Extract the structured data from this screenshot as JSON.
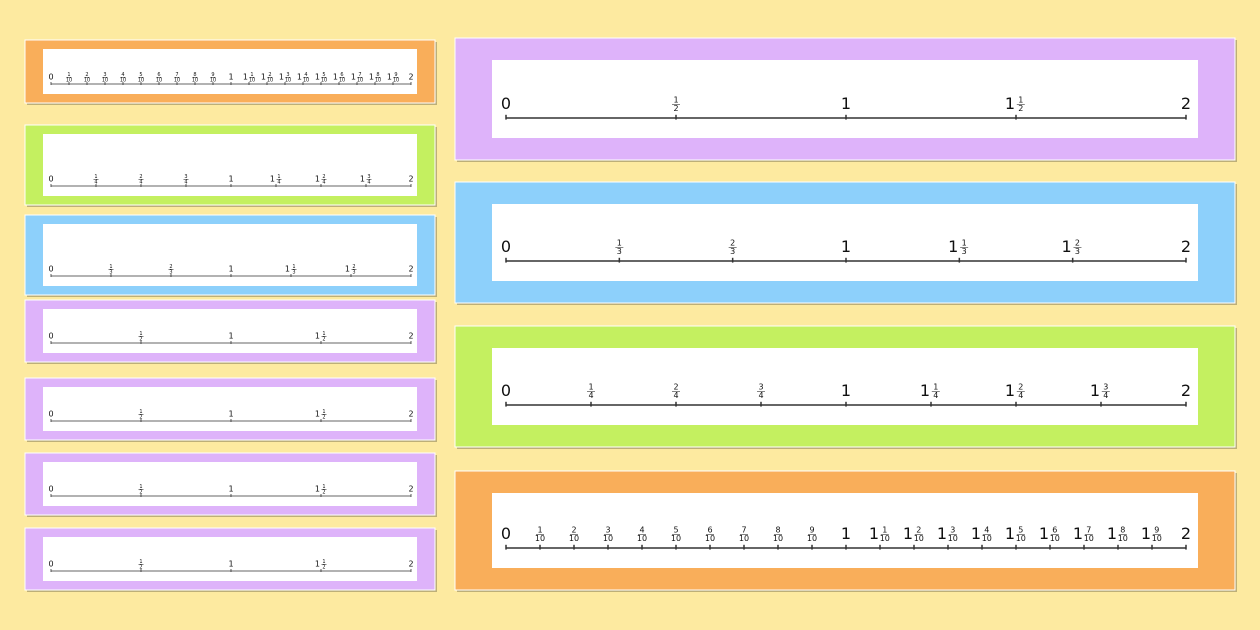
{
  "left_cards": [
    {
      "color": "#f9ae5a",
      "labels": [
        {
          "w": "0"
        },
        {
          "n": "1",
          "d": "10"
        },
        {
          "n": "2",
          "d": "10"
        },
        {
          "n": "3",
          "d": "10"
        },
        {
          "n": "4",
          "d": "10"
        },
        {
          "n": "5",
          "d": "10"
        },
        {
          "n": "6",
          "d": "10"
        },
        {
          "n": "7",
          "d": "10"
        },
        {
          "n": "8",
          "d": "10"
        },
        {
          "n": "9",
          "d": "10"
        },
        {
          "w": "1"
        },
        {
          "w": "1",
          "n": "1",
          "d": "10"
        },
        {
          "w": "1",
          "n": "2",
          "d": "10"
        },
        {
          "w": "1",
          "n": "3",
          "d": "10"
        },
        {
          "w": "1",
          "n": "4",
          "d": "10"
        },
        {
          "w": "1",
          "n": "5",
          "d": "10"
        },
        {
          "w": "1",
          "n": "6",
          "d": "10"
        },
        {
          "w": "1",
          "n": "7",
          "d": "10"
        },
        {
          "w": "1",
          "n": "8",
          "d": "10"
        },
        {
          "w": "1",
          "n": "9",
          "d": "10"
        },
        {
          "w": "2"
        }
      ]
    },
    {
      "color": "#c4f060",
      "labels": [
        {
          "w": "0"
        },
        {
          "n": "1",
          "d": "4"
        },
        {
          "n": "2",
          "d": "4"
        },
        {
          "n": "3",
          "d": "4"
        },
        {
          "w": "1"
        },
        {
          "w": "1",
          "n": "1",
          "d": "4"
        },
        {
          "w": "1",
          "n": "2",
          "d": "4"
        },
        {
          "w": "1",
          "n": "3",
          "d": "4"
        },
        {
          "w": "2"
        }
      ]
    },
    {
      "color": "#8dd0fb",
      "labels": [
        {
          "w": "0"
        },
        {
          "n": "1",
          "d": "3"
        },
        {
          "n": "2",
          "d": "3"
        },
        {
          "w": "1"
        },
        {
          "w": "1",
          "n": "1",
          "d": "3"
        },
        {
          "w": "1",
          "n": "2",
          "d": "3"
        },
        {
          "w": "2"
        }
      ]
    },
    {
      "color": "#deb3fa",
      "labels": [
        {
          "w": "0"
        },
        {
          "n": "1",
          "d": "2"
        },
        {
          "w": "1"
        },
        {
          "w": "1",
          "n": "1",
          "d": "2"
        },
        {
          "w": "2"
        }
      ]
    },
    {
      "color": "#deb3fa",
      "labels": [
        {
          "w": "0"
        },
        {
          "n": "1",
          "d": "2"
        },
        {
          "w": "1"
        },
        {
          "w": "1",
          "n": "1",
          "d": "2"
        },
        {
          "w": "2"
        }
      ]
    },
    {
      "color": "#deb3fa",
      "labels": [
        {
          "w": "0"
        },
        {
          "n": "1",
          "d": "2"
        },
        {
          "w": "1"
        },
        {
          "w": "1",
          "n": "1",
          "d": "2"
        },
        {
          "w": "2"
        }
      ]
    },
    {
      "color": "#deb3fa",
      "labels": [
        {
          "w": "0"
        },
        {
          "n": "1",
          "d": "2"
        },
        {
          "w": "1"
        },
        {
          "w": "1",
          "n": "1",
          "d": "2"
        },
        {
          "w": "2"
        }
      ]
    }
  ],
  "right_cards": [
    {
      "color": "#deb3fa",
      "labels": [
        {
          "w": "0"
        },
        {
          "n": "1",
          "d": "2"
        },
        {
          "w": "1"
        },
        {
          "w": "1",
          "n": "1",
          "d": "2"
        },
        {
          "w": "2"
        }
      ]
    },
    {
      "color": "#8dd0fb",
      "labels": [
        {
          "w": "0"
        },
        {
          "n": "1",
          "d": "3"
        },
        {
          "n": "2",
          "d": "3"
        },
        {
          "w": "1"
        },
        {
          "w": "1",
          "n": "1",
          "d": "3"
        },
        {
          "w": "1",
          "n": "2",
          "d": "3"
        },
        {
          "w": "2"
        }
      ]
    },
    {
      "color": "#c4f060",
      "labels": [
        {
          "w": "0"
        },
        {
          "n": "1",
          "d": "4"
        },
        {
          "n": "2",
          "d": "4"
        },
        {
          "n": "3",
          "d": "4"
        },
        {
          "w": "1"
        },
        {
          "w": "1",
          "n": "1",
          "d": "4"
        },
        {
          "w": "1",
          "n": "2",
          "d": "4"
        },
        {
          "w": "1",
          "n": "3",
          "d": "4"
        },
        {
          "w": "2"
        }
      ]
    },
    {
      "color": "#f9ae5a",
      "labels": [
        {
          "w": "0"
        },
        {
          "n": "1",
          "d": "10"
        },
        {
          "n": "2",
          "d": "10"
        },
        {
          "n": "3",
          "d": "10"
        },
        {
          "n": "4",
          "d": "10"
        },
        {
          "n": "5",
          "d": "10"
        },
        {
          "n": "6",
          "d": "10"
        },
        {
          "n": "7",
          "d": "10"
        },
        {
          "n": "8",
          "d": "10"
        },
        {
          "n": "9",
          "d": "10"
        },
        {
          "w": "1"
        },
        {
          "w": "1",
          "n": "1",
          "d": "10"
        },
        {
          "w": "1",
          "n": "2",
          "d": "10"
        },
        {
          "w": "1",
          "n": "3",
          "d": "10"
        },
        {
          "w": "1",
          "n": "4",
          "d": "10"
        },
        {
          "w": "1",
          "n": "5",
          "d": "10"
        },
        {
          "w": "1",
          "n": "6",
          "d": "10"
        },
        {
          "w": "1",
          "n": "7",
          "d": "10"
        },
        {
          "w": "1",
          "n": "8",
          "d": "10"
        },
        {
          "w": "1",
          "n": "9",
          "d": "10"
        },
        {
          "w": "2"
        }
      ]
    }
  ]
}
